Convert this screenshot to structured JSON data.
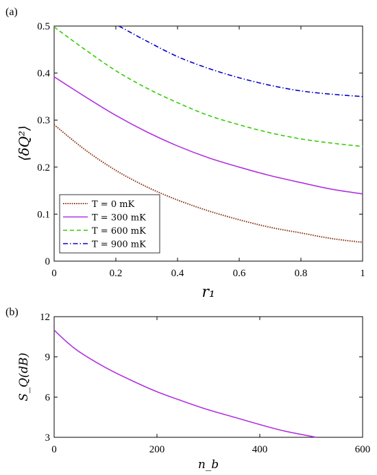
{
  "chart_data": [
    {
      "type": "line",
      "panel_label": "(a)",
      "xlabel": "r₁",
      "ylabel": "⟨δQ²⟩",
      "xlim": [
        0,
        1
      ],
      "ylim": [
        0,
        0.5
      ],
      "xticks": [
        "0",
        "0.2",
        "0.4",
        "0.6",
        "0.8",
        "1"
      ],
      "yticks": [
        "0",
        "0.1",
        "0.2",
        "0.3",
        "0.4",
        "0.5"
      ],
      "grid": false,
      "legend_position": "bottom-left",
      "series": [
        {
          "name": "T = 0 mK",
          "color": "#8B3A1A",
          "style": "dotted",
          "x": [
            0,
            0.1,
            0.2,
            0.3,
            0.4,
            0.5,
            0.6,
            0.7,
            0.8,
            0.9,
            1.0
          ],
          "y": [
            0.29,
            0.237,
            0.193,
            0.158,
            0.13,
            0.107,
            0.088,
            0.072,
            0.06,
            0.048,
            0.04
          ]
        },
        {
          "name": "T = 300 mK",
          "color": "#B030E0",
          "style": "solid",
          "x": [
            0,
            0.1,
            0.2,
            0.3,
            0.4,
            0.5,
            0.6,
            0.7,
            0.8,
            0.9,
            1.0
          ],
          "y": [
            0.392,
            0.35,
            0.31,
            0.275,
            0.245,
            0.22,
            0.2,
            0.182,
            0.167,
            0.153,
            0.143
          ]
        },
        {
          "name": "T = 600 mK",
          "color": "#33CC00",
          "style": "dashed",
          "x": [
            0,
            0.1,
            0.2,
            0.3,
            0.4,
            0.5,
            0.6,
            0.7,
            0.8,
            0.9,
            1.0
          ],
          "y": [
            0.498,
            0.45,
            0.405,
            0.368,
            0.337,
            0.31,
            0.29,
            0.273,
            0.26,
            0.251,
            0.244
          ]
        },
        {
          "name": "T = 900 mK",
          "color": "#0000CC",
          "style": "dashdot",
          "x": [
            0.21,
            0.3,
            0.4,
            0.5,
            0.6,
            0.7,
            0.8,
            0.9,
            1.0
          ],
          "y": [
            0.5,
            0.468,
            0.435,
            0.41,
            0.39,
            0.374,
            0.362,
            0.355,
            0.35
          ]
        }
      ]
    },
    {
      "type": "line",
      "panel_label": "(b)",
      "xlabel": "n_b",
      "ylabel": "S_Q(dB)",
      "xlim": [
        0,
        600
      ],
      "ylim": [
        3,
        12
      ],
      "xticks": [
        "0",
        "200",
        "400",
        "600"
      ],
      "yticks": [
        "3",
        "6",
        "9",
        "12"
      ],
      "grid": false,
      "series": [
        {
          "color": "#B030E0",
          "style": "solid",
          "x": [
            0,
            25,
            50,
            100,
            150,
            200,
            250,
            300,
            350,
            400,
            450,
            510
          ],
          "y": [
            11.0,
            10.1,
            9.35,
            8.2,
            7.25,
            6.4,
            5.7,
            5.05,
            4.5,
            3.95,
            3.45,
            3.0
          ]
        }
      ]
    }
  ]
}
